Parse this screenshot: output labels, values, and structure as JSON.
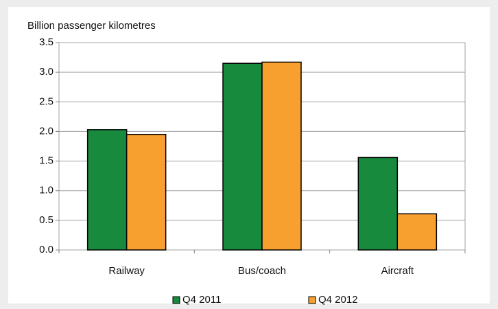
{
  "chart_data": {
    "type": "bar",
    "y_label": "Billion passenger kilometres",
    "categories": [
      "Railway",
      "Bus/coach",
      "Aircraft"
    ],
    "series": [
      {
        "name": "Q4 2011",
        "color": "#178a3e",
        "values": [
          2.03,
          3.15,
          1.56
        ]
      },
      {
        "name": "Q4 2012",
        "color": "#f7a02f",
        "values": [
          1.95,
          3.17,
          0.61
        ]
      }
    ],
    "ylim": [
      0,
      3.5
    ],
    "yticks": [
      {
        "value": 0,
        "label": "0.0"
      },
      0.5,
      {
        "value": 1,
        "label": "1.0"
      },
      1.5,
      {
        "value": 2,
        "label": "2.0"
      },
      2.5,
      {
        "value": 3,
        "label": "3.0"
      },
      3.5
    ],
    "grid": true,
    "legend": "bottom"
  }
}
